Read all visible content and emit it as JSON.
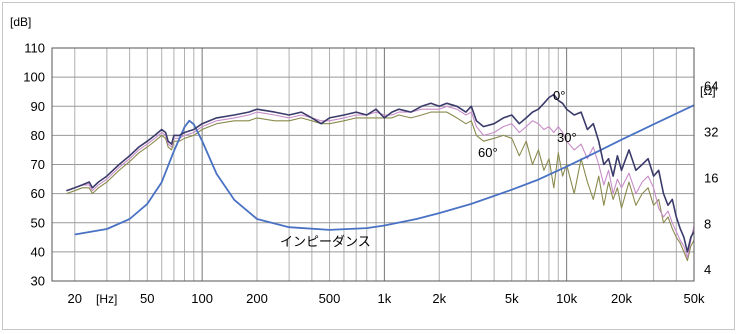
{
  "chart_data": {
    "type": "line",
    "xscale": "log",
    "xlim": [
      15,
      50000
    ],
    "ylim": [
      30,
      110
    ],
    "y_right_scale": "log",
    "y_right_lim": [
      3.37,
      114
    ],
    "grid": true,
    "xlabel": "[Hz]",
    "ylabel": "[dB]",
    "y_right_label": "[Ω]",
    "x_tick_labels": [
      {
        "v": 20,
        "t": "20"
      },
      {
        "v": 50,
        "t": "50"
      },
      {
        "v": 100,
        "t": "100"
      },
      {
        "v": 200,
        "t": "200"
      },
      {
        "v": 500,
        "t": "500"
      },
      {
        "v": 1000,
        "t": "1k"
      },
      {
        "v": 2000,
        "t": "2k"
      },
      {
        "v": 5000,
        "t": "5k"
      },
      {
        "v": 10000,
        "t": "10k"
      },
      {
        "v": 20000,
        "t": "20k"
      },
      {
        "v": 50000,
        "t": "50k"
      }
    ],
    "y_ticks": [
      30,
      40,
      50,
      60,
      70,
      80,
      90,
      100,
      110
    ],
    "y_right_ticks": [
      4,
      8,
      16,
      32,
      64
    ],
    "series": [
      {
        "name": "0°",
        "axis": "left",
        "color": "#3b3b6b",
        "points": [
          [
            18,
            61
          ],
          [
            20,
            62
          ],
          [
            22,
            63
          ],
          [
            24,
            64
          ],
          [
            25,
            62
          ],
          [
            27,
            64
          ],
          [
            30,
            66
          ],
          [
            35,
            70
          ],
          [
            40,
            73
          ],
          [
            45,
            76
          ],
          [
            50,
            78
          ],
          [
            55,
            80
          ],
          [
            60,
            82
          ],
          [
            63,
            81
          ],
          [
            65,
            78
          ],
          [
            68,
            77
          ],
          [
            70,
            80
          ],
          [
            75,
            80
          ],
          [
            80,
            81
          ],
          [
            90,
            82
          ],
          [
            100,
            84
          ],
          [
            120,
            86
          ],
          [
            150,
            87
          ],
          [
            180,
            88
          ],
          [
            200,
            89
          ],
          [
            250,
            88
          ],
          [
            300,
            87
          ],
          [
            350,
            88
          ],
          [
            400,
            86
          ],
          [
            450,
            84
          ],
          [
            500,
            86
          ],
          [
            600,
            87
          ],
          [
            700,
            88
          ],
          [
            800,
            87
          ],
          [
            900,
            89
          ],
          [
            1000,
            86
          ],
          [
            1100,
            88
          ],
          [
            1200,
            89
          ],
          [
            1400,
            88
          ],
          [
            1600,
            90
          ],
          [
            1800,
            91
          ],
          [
            2000,
            90
          ],
          [
            2200,
            91
          ],
          [
            2500,
            90
          ],
          [
            2800,
            88
          ],
          [
            3000,
            90
          ],
          [
            3200,
            85
          ],
          [
            3500,
            83
          ],
          [
            4000,
            84
          ],
          [
            4500,
            86
          ],
          [
            5000,
            87
          ],
          [
            5500,
            84
          ],
          [
            6000,
            86
          ],
          [
            6500,
            88
          ],
          [
            7000,
            89
          ],
          [
            7500,
            91
          ],
          [
            8000,
            93
          ],
          [
            8500,
            94
          ],
          [
            9000,
            92
          ],
          [
            9500,
            91
          ],
          [
            10000,
            89
          ],
          [
            11000,
            87
          ],
          [
            12000,
            88
          ],
          [
            13000,
            82
          ],
          [
            14000,
            84
          ],
          [
            15000,
            78
          ],
          [
            16000,
            70
          ],
          [
            17000,
            72
          ],
          [
            18000,
            66
          ],
          [
            19000,
            73
          ],
          [
            20000,
            68
          ],
          [
            22000,
            75
          ],
          [
            24000,
            68
          ],
          [
            26000,
            70
          ],
          [
            28000,
            72
          ],
          [
            30000,
            66
          ],
          [
            32000,
            68
          ],
          [
            34000,
            60
          ],
          [
            36000,
            56
          ],
          [
            38000,
            58
          ],
          [
            40000,
            52
          ],
          [
            42000,
            48
          ],
          [
            44000,
            45
          ],
          [
            46000,
            40
          ],
          [
            48000,
            45
          ],
          [
            50000,
            47
          ]
        ]
      },
      {
        "name": "30°",
        "axis": "left",
        "color": "#c88cc8",
        "points": [
          [
            18,
            61
          ],
          [
            20,
            62
          ],
          [
            22,
            63
          ],
          [
            24,
            63
          ],
          [
            25,
            61
          ],
          [
            27,
            63
          ],
          [
            30,
            65
          ],
          [
            35,
            69
          ],
          [
            40,
            72
          ],
          [
            45,
            75
          ],
          [
            50,
            77
          ],
          [
            55,
            79
          ],
          [
            60,
            81
          ],
          [
            63,
            80
          ],
          [
            65,
            77
          ],
          [
            68,
            76
          ],
          [
            70,
            79
          ],
          [
            75,
            79
          ],
          [
            80,
            80
          ],
          [
            90,
            81
          ],
          [
            100,
            83
          ],
          [
            120,
            85
          ],
          [
            150,
            86
          ],
          [
            180,
            87
          ],
          [
            200,
            88
          ],
          [
            250,
            87
          ],
          [
            300,
            86
          ],
          [
            350,
            87
          ],
          [
            400,
            86
          ],
          [
            450,
            85
          ],
          [
            500,
            85
          ],
          [
            600,
            86
          ],
          [
            700,
            87
          ],
          [
            800,
            87
          ],
          [
            900,
            88
          ],
          [
            1000,
            87
          ],
          [
            1100,
            87
          ],
          [
            1200,
            88
          ],
          [
            1400,
            88
          ],
          [
            1600,
            89
          ],
          [
            1800,
            89
          ],
          [
            2000,
            89
          ],
          [
            2200,
            90
          ],
          [
            2500,
            89
          ],
          [
            2800,
            87
          ],
          [
            3000,
            88
          ],
          [
            3200,
            83
          ],
          [
            3500,
            80
          ],
          [
            4000,
            81
          ],
          [
            4500,
            83
          ],
          [
            5000,
            84
          ],
          [
            5500,
            81
          ],
          [
            6000,
            83
          ],
          [
            6500,
            85
          ],
          [
            7000,
            84
          ],
          [
            7500,
            82
          ],
          [
            8000,
            83
          ],
          [
            8500,
            81
          ],
          [
            9000,
            83
          ],
          [
            9500,
            81
          ],
          [
            10000,
            78
          ],
          [
            11000,
            75
          ],
          [
            12000,
            77
          ],
          [
            13000,
            72
          ],
          [
            14000,
            76
          ],
          [
            15000,
            70
          ],
          [
            16000,
            63
          ],
          [
            17000,
            68
          ],
          [
            18000,
            60
          ],
          [
            19000,
            65
          ],
          [
            20000,
            62
          ],
          [
            22000,
            67
          ],
          [
            24000,
            60
          ],
          [
            26000,
            64
          ],
          [
            28000,
            66
          ],
          [
            30000,
            62
          ],
          [
            32000,
            55
          ],
          [
            34000,
            52
          ],
          [
            36000,
            54
          ],
          [
            38000,
            50
          ],
          [
            40000,
            47
          ],
          [
            42000,
            44
          ],
          [
            44000,
            42
          ],
          [
            46000,
            38
          ],
          [
            48000,
            44
          ],
          [
            50000,
            49
          ]
        ]
      },
      {
        "name": "60°",
        "axis": "left",
        "color": "#8a8a4e",
        "points": [
          [
            18,
            60
          ],
          [
            20,
            61
          ],
          [
            22,
            62
          ],
          [
            24,
            62
          ],
          [
            25,
            60
          ],
          [
            27,
            62
          ],
          [
            30,
            64
          ],
          [
            35,
            68
          ],
          [
            40,
            71
          ],
          [
            45,
            74
          ],
          [
            50,
            76
          ],
          [
            55,
            78
          ],
          [
            60,
            80
          ],
          [
            63,
            79
          ],
          [
            65,
            76
          ],
          [
            68,
            75
          ],
          [
            70,
            78
          ],
          [
            75,
            78
          ],
          [
            80,
            79
          ],
          [
            90,
            80
          ],
          [
            100,
            82
          ],
          [
            120,
            84
          ],
          [
            150,
            85
          ],
          [
            180,
            85
          ],
          [
            200,
            86
          ],
          [
            250,
            85
          ],
          [
            300,
            85
          ],
          [
            350,
            86
          ],
          [
            400,
            85
          ],
          [
            450,
            84
          ],
          [
            500,
            84
          ],
          [
            600,
            85
          ],
          [
            700,
            86
          ],
          [
            800,
            86
          ],
          [
            900,
            86
          ],
          [
            1000,
            86
          ],
          [
            1100,
            86
          ],
          [
            1200,
            87
          ],
          [
            1400,
            86
          ],
          [
            1600,
            87
          ],
          [
            1800,
            88
          ],
          [
            2000,
            88
          ],
          [
            2200,
            88
          ],
          [
            2500,
            86
          ],
          [
            2800,
            84
          ],
          [
            3000,
            85
          ],
          [
            3200,
            80
          ],
          [
            3500,
            78
          ],
          [
            4000,
            79
          ],
          [
            4500,
            80
          ],
          [
            5000,
            79
          ],
          [
            5500,
            73
          ],
          [
            6000,
            78
          ],
          [
            6500,
            70
          ],
          [
            7000,
            75
          ],
          [
            7500,
            68
          ],
          [
            8000,
            72
          ],
          [
            8500,
            62
          ],
          [
            9000,
            74
          ],
          [
            9500,
            66
          ],
          [
            10000,
            70
          ],
          [
            11000,
            60
          ],
          [
            12000,
            72
          ],
          [
            13000,
            64
          ],
          [
            14000,
            58
          ],
          [
            15000,
            66
          ],
          [
            16000,
            56
          ],
          [
            17000,
            64
          ],
          [
            18000,
            58
          ],
          [
            19000,
            62
          ],
          [
            20000,
            55
          ],
          [
            22000,
            64
          ],
          [
            24000,
            56
          ],
          [
            26000,
            60
          ],
          [
            28000,
            62
          ],
          [
            30000,
            56
          ],
          [
            32000,
            58
          ],
          [
            34000,
            50
          ],
          [
            36000,
            52
          ],
          [
            38000,
            48
          ],
          [
            40000,
            45
          ],
          [
            42000,
            43
          ],
          [
            44000,
            40
          ],
          [
            46000,
            37
          ],
          [
            48000,
            42
          ],
          [
            50000,
            44
          ]
        ]
      },
      {
        "name": "インピーダンス",
        "axis": "right",
        "color": "#4a72c4",
        "points": [
          [
            20,
            6.8
          ],
          [
            30,
            7.4
          ],
          [
            40,
            8.6
          ],
          [
            50,
            10.8
          ],
          [
            60,
            15.0
          ],
          [
            70,
            24.0
          ],
          [
            80,
            34.5
          ],
          [
            85,
            38.0
          ],
          [
            90,
            36.0
          ],
          [
            100,
            28.0
          ],
          [
            120,
            17.0
          ],
          [
            150,
            11.5
          ],
          [
            200,
            8.6
          ],
          [
            300,
            7.6
          ],
          [
            500,
            7.3
          ],
          [
            800,
            7.5
          ],
          [
            1000,
            7.8
          ],
          [
            1500,
            8.6
          ],
          [
            2000,
            9.4
          ],
          [
            3000,
            10.8
          ],
          [
            5000,
            13.4
          ],
          [
            7000,
            15.6
          ],
          [
            10000,
            19.0
          ],
          [
            15000,
            24.0
          ],
          [
            20000,
            28.5
          ],
          [
            30000,
            36.0
          ],
          [
            50000,
            48.0
          ]
        ]
      }
    ],
    "annotations": [
      "0°",
      "30°",
      "60°",
      "インピーダンス"
    ]
  }
}
